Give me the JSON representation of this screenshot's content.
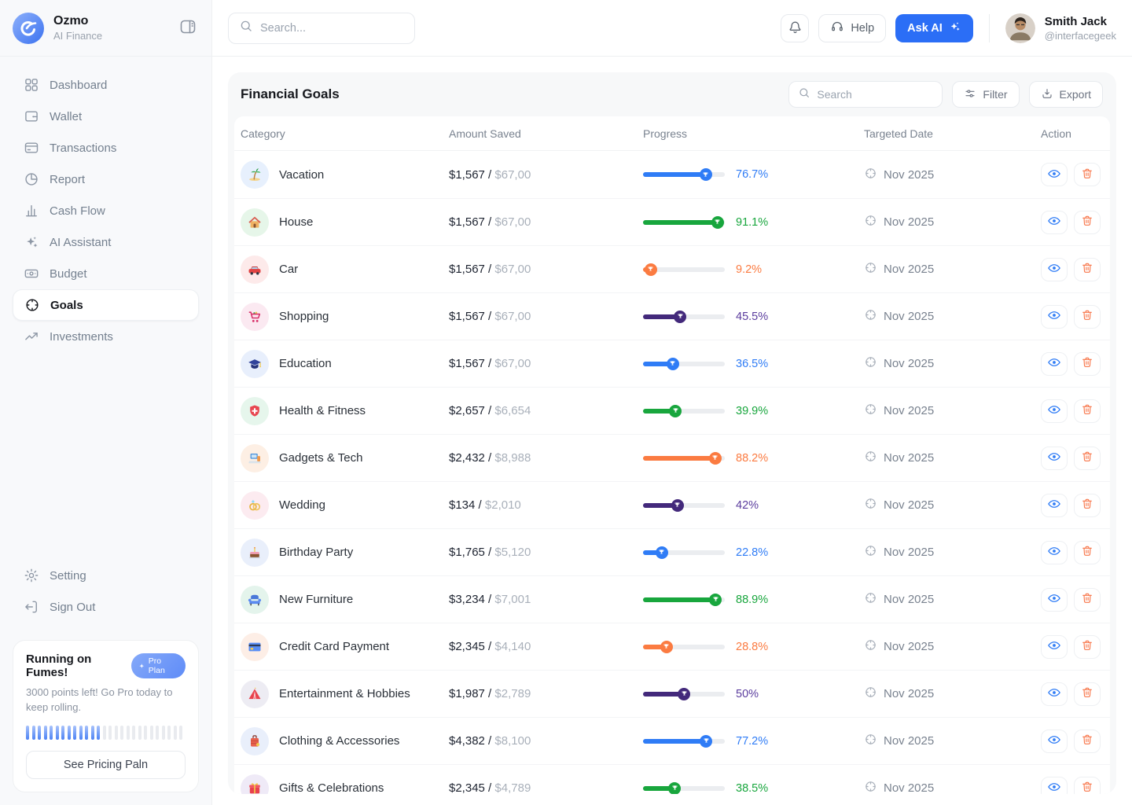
{
  "sidebar": {
    "brand": {
      "name": "Ozmo",
      "subtitle": "AI Finance"
    },
    "nav": [
      {
        "icon": "dashboard",
        "label": "Dashboard",
        "selected": false
      },
      {
        "icon": "wallet",
        "label": "Wallet",
        "selected": false
      },
      {
        "icon": "transactions",
        "label": "Transactions",
        "selected": false
      },
      {
        "icon": "report",
        "label": "Report",
        "selected": false
      },
      {
        "icon": "cashflow",
        "label": "Cash Flow",
        "selected": false
      },
      {
        "icon": "ai",
        "label": "AI Assistant",
        "selected": false
      },
      {
        "icon": "budget",
        "label": "Budget",
        "selected": false
      },
      {
        "icon": "goals",
        "label": "Goals",
        "selected": true
      },
      {
        "icon": "investments",
        "label": "Investments",
        "selected": false
      }
    ],
    "footer": [
      {
        "icon": "settings",
        "label": "Setting"
      },
      {
        "icon": "signout",
        "label": "Sign Out"
      }
    ],
    "promo": {
      "title": "Running on Fumes!",
      "badge": "Pro Plan",
      "body": "3000 points left!  Go Pro today to keep rolling.",
      "button": "See Pricing Paln",
      "meter_total": 27,
      "meter_filled": 13
    }
  },
  "topbar": {
    "search_placeholder": "Search...",
    "help": "Help",
    "ask_ai": "Ask AI",
    "user": {
      "name": "Smith Jack",
      "handle": "@interfacegeek"
    }
  },
  "goals": {
    "title": "Financial Goals",
    "search_placeholder": "Search",
    "filter": "Filter",
    "export": "Export",
    "columns": [
      "Category",
      "Amount Saved",
      "Progress",
      "Targeted Date",
      "Action"
    ],
    "rows": [
      {
        "icon": "vacation",
        "icon_bg": "#e7f0fd",
        "category": "Vacation",
        "saved": "$1,567",
        "target": "$67,00",
        "pct_label": "76.7%",
        "pct": 76.7,
        "color": "blue",
        "date": "Nov 2025"
      },
      {
        "icon": "house",
        "icon_bg": "#e6f6e9",
        "category": "House",
        "saved": "$1,567",
        "target": "$67,00",
        "pct_label": "91.1%",
        "pct": 91.1,
        "color": "green",
        "date": "Nov 2025"
      },
      {
        "icon": "car",
        "icon_bg": "#fdeaea",
        "category": "Car",
        "saved": "$1,567",
        "target": "$67,00",
        "pct_label": "9.2%",
        "pct": 9.2,
        "color": "orange",
        "date": "Nov 2025"
      },
      {
        "icon": "shopping",
        "icon_bg": "#fbe9f1",
        "category": "Shopping",
        "saved": "$1,567",
        "target": "$67,00",
        "pct_label": "45.5%",
        "pct": 45.5,
        "color": "purple",
        "date": "Nov 2025"
      },
      {
        "icon": "education",
        "icon_bg": "#e8effc",
        "category": "Education",
        "saved": "$1,567",
        "target": "$67,00",
        "pct_label": "36.5%",
        "pct": 36.5,
        "color": "blue",
        "date": "Nov 2025"
      },
      {
        "icon": "health",
        "icon_bg": "#e6f6ec",
        "category": "Health & Fitness",
        "saved": "$2,657",
        "target": "$6,654",
        "pct_label": "39.9%",
        "pct": 39.9,
        "color": "green",
        "date": "Nov 2025"
      },
      {
        "icon": "gadgets",
        "icon_bg": "#fdefe4",
        "category": "Gadgets & Tech",
        "saved": "$2,432",
        "target": "$8,988",
        "pct_label": "88.2%",
        "pct": 88.2,
        "color": "orange",
        "date": "Nov 2025"
      },
      {
        "icon": "wedding",
        "icon_bg": "#fcebf0",
        "category": "Wedding",
        "saved": "$134",
        "target": "$2,010",
        "pct_label": "42%",
        "pct": 42,
        "color": "purple",
        "date": "Nov 2025"
      },
      {
        "icon": "birthday",
        "icon_bg": "#e9effb",
        "category": "Birthday Party",
        "saved": "$1,765",
        "target": "$5,120",
        "pct_label": "22.8%",
        "pct": 22.8,
        "color": "blue",
        "date": "Nov 2025"
      },
      {
        "icon": "furniture",
        "icon_bg": "#e4f4ec",
        "category": "New Furniture",
        "saved": "$3,234",
        "target": "$7,001",
        "pct_label": "88.9%",
        "pct": 88.9,
        "color": "green",
        "date": "Nov 2025"
      },
      {
        "icon": "creditcard",
        "icon_bg": "#fdeee6",
        "category": "Credit Card Payment",
        "saved": "$2,345",
        "target": "$4,140",
        "pct_label": "28.8%",
        "pct": 28.8,
        "color": "orange",
        "date": "Nov 2025"
      },
      {
        "icon": "tent",
        "icon_bg": "#edecf3",
        "category": "Entertainment & Hobbies",
        "saved": "$1,987",
        "target": "$2,789",
        "pct_label": "50%",
        "pct": 50,
        "color": "purple",
        "date": "Nov 2025"
      },
      {
        "icon": "clothing",
        "icon_bg": "#e9effb",
        "category": "Clothing & Accessories",
        "saved": "$4,382",
        "target": "$8,100",
        "pct_label": "77.2%",
        "pct": 77.2,
        "color": "blue",
        "date": "Nov 2025"
      },
      {
        "icon": "gifts",
        "icon_bg": "#efeaf7",
        "category": "Gifts & Celebrations",
        "saved": "$2,345",
        "target": "$4,789",
        "pct_label": "38.5%",
        "pct": 38.5,
        "color": "green",
        "date": "Nov 2025"
      }
    ]
  },
  "colors": {
    "blue": {
      "bar": "#2f7cf6",
      "text": "#2f7cf6"
    },
    "green": {
      "bar": "#18a63d",
      "text": "#18a63d"
    },
    "orange": {
      "bar": "#fb7b41",
      "text": "#fb7b41"
    },
    "purple": {
      "bar": "#43297b",
      "text": "#5b3d9e"
    },
    "accent": "#2b6ef6"
  }
}
